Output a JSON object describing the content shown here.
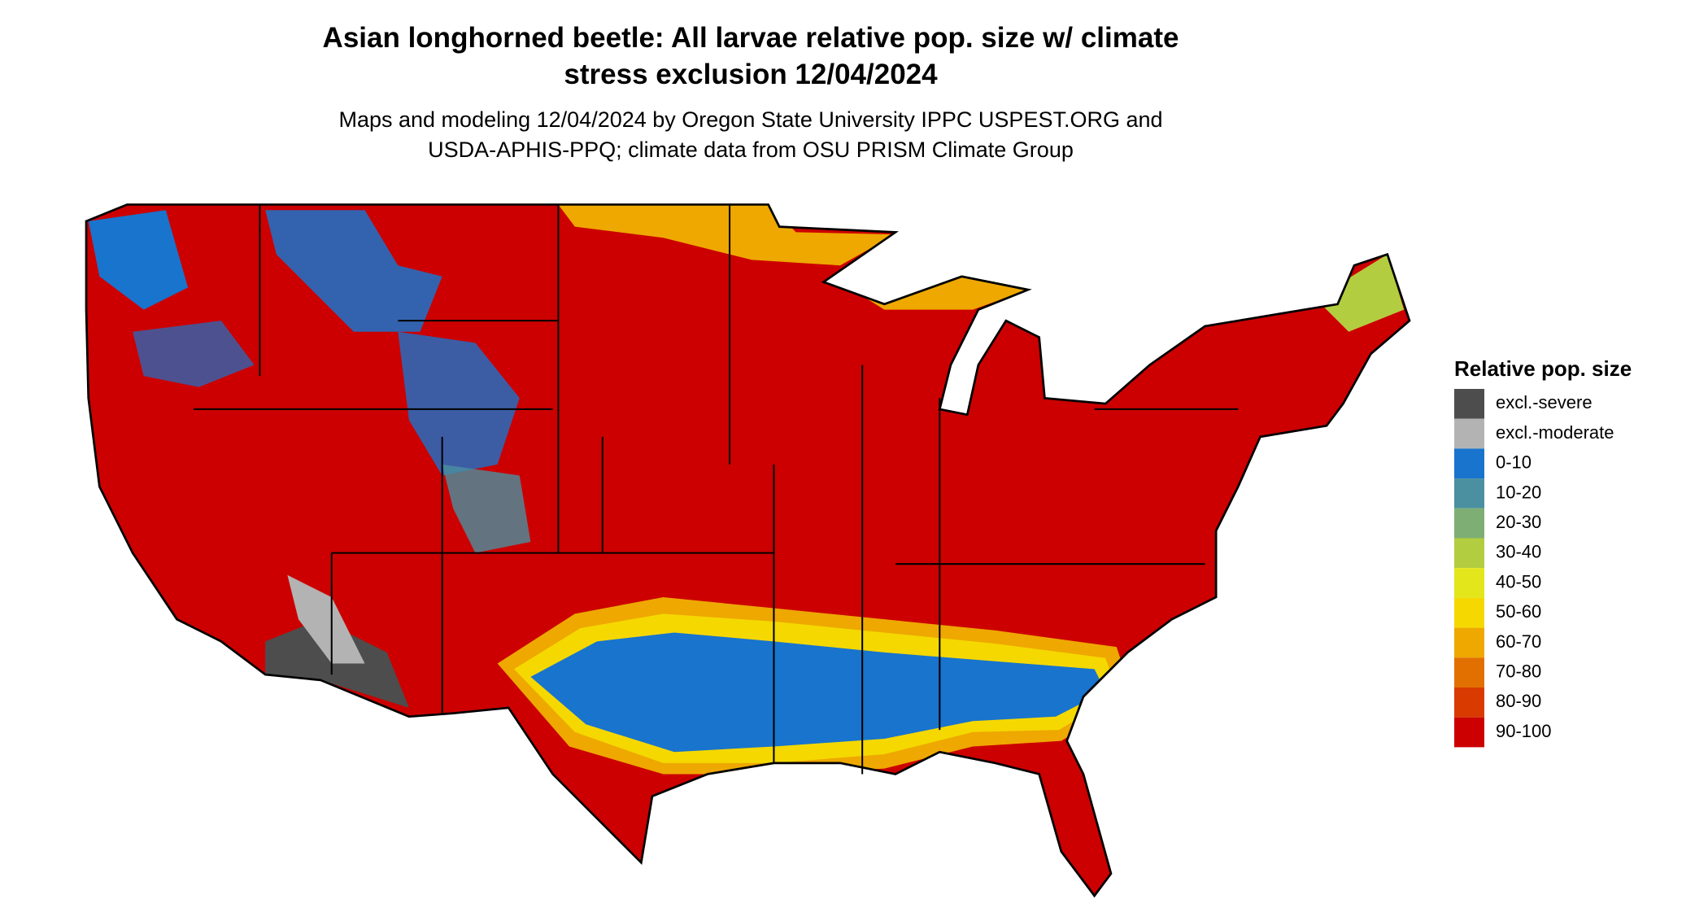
{
  "title": [
    "Asian longhorned beetle: All larvae relative pop. size w/ climate",
    "stress exclusion 12/04/2024"
  ],
  "subtitle": [
    "Maps and modeling 12/04/2024 by Oregon State University IPPC USPEST.ORG and",
    "USDA-APHIS-PPQ; climate data from OSU PRISM Climate Group"
  ],
  "legend": {
    "title": "Relative pop. size",
    "items": [
      {
        "label": "excl.-severe",
        "color": "#4d4d4d"
      },
      {
        "label": "excl.-moderate",
        "color": "#b3b3b3"
      },
      {
        "label": "0-10",
        "color": "#1874cd"
      },
      {
        "label": "10-20",
        "color": "#4a90a0"
      },
      {
        "label": "20-30",
        "color": "#7fae74"
      },
      {
        "label": "30-40",
        "color": "#b3cd40"
      },
      {
        "label": "40-50",
        "color": "#e3e61a"
      },
      {
        "label": "50-60",
        "color": "#f5d800"
      },
      {
        "label": "60-70",
        "color": "#eea800"
      },
      {
        "label": "70-80",
        "color": "#e27000"
      },
      {
        "label": "80-90",
        "color": "#d83a00"
      },
      {
        "label": "90-100",
        "color": "#cc0000"
      }
    ]
  }
}
